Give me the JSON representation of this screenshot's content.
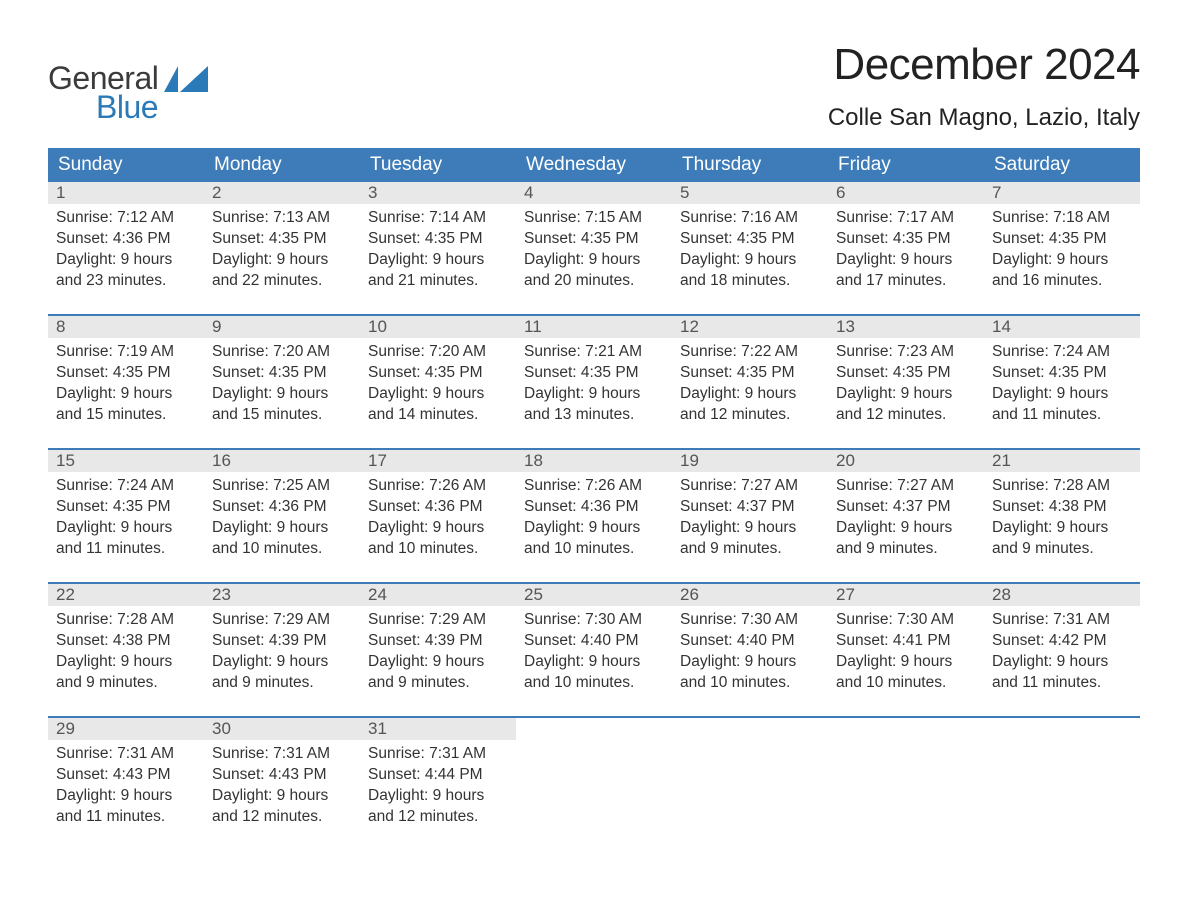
{
  "colors": {
    "header_bg": "#3d7cb8",
    "header_text": "#ffffff",
    "daynum_bg": "#e8e8e8",
    "daynum_text": "#555555",
    "body_text": "#333333",
    "week_border": "#3d7cb8",
    "page_bg": "#ffffff",
    "logo_general": "#3b3b3b",
    "logo_blue": "#2a7ab8",
    "title_text": "#222222"
  },
  "typography": {
    "title_fontsize": 44,
    "location_fontsize": 24,
    "dow_fontsize": 19,
    "daynum_fontsize": 17,
    "body_fontsize": 15.5,
    "logo_fontsize": 32,
    "font_family": "Arial"
  },
  "logo": {
    "top": "General",
    "bottom": "Blue"
  },
  "title": "December 2024",
  "location": "Colle San Magno, Lazio, Italy",
  "dow": [
    "Sunday",
    "Monday",
    "Tuesday",
    "Wednesday",
    "Thursday",
    "Friday",
    "Saturday"
  ],
  "weeks": [
    [
      {
        "n": "1",
        "sunrise": "Sunrise: 7:12 AM",
        "sunset": "Sunset: 4:36 PM",
        "d1": "Daylight: 9 hours",
        "d2": "and 23 minutes."
      },
      {
        "n": "2",
        "sunrise": "Sunrise: 7:13 AM",
        "sunset": "Sunset: 4:35 PM",
        "d1": "Daylight: 9 hours",
        "d2": "and 22 minutes."
      },
      {
        "n": "3",
        "sunrise": "Sunrise: 7:14 AM",
        "sunset": "Sunset: 4:35 PM",
        "d1": "Daylight: 9 hours",
        "d2": "and 21 minutes."
      },
      {
        "n": "4",
        "sunrise": "Sunrise: 7:15 AM",
        "sunset": "Sunset: 4:35 PM",
        "d1": "Daylight: 9 hours",
        "d2": "and 20 minutes."
      },
      {
        "n": "5",
        "sunrise": "Sunrise: 7:16 AM",
        "sunset": "Sunset: 4:35 PM",
        "d1": "Daylight: 9 hours",
        "d2": "and 18 minutes."
      },
      {
        "n": "6",
        "sunrise": "Sunrise: 7:17 AM",
        "sunset": "Sunset: 4:35 PM",
        "d1": "Daylight: 9 hours",
        "d2": "and 17 minutes."
      },
      {
        "n": "7",
        "sunrise": "Sunrise: 7:18 AM",
        "sunset": "Sunset: 4:35 PM",
        "d1": "Daylight: 9 hours",
        "d2": "and 16 minutes."
      }
    ],
    [
      {
        "n": "8",
        "sunrise": "Sunrise: 7:19 AM",
        "sunset": "Sunset: 4:35 PM",
        "d1": "Daylight: 9 hours",
        "d2": "and 15 minutes."
      },
      {
        "n": "9",
        "sunrise": "Sunrise: 7:20 AM",
        "sunset": "Sunset: 4:35 PM",
        "d1": "Daylight: 9 hours",
        "d2": "and 15 minutes."
      },
      {
        "n": "10",
        "sunrise": "Sunrise: 7:20 AM",
        "sunset": "Sunset: 4:35 PM",
        "d1": "Daylight: 9 hours",
        "d2": "and 14 minutes."
      },
      {
        "n": "11",
        "sunrise": "Sunrise: 7:21 AM",
        "sunset": "Sunset: 4:35 PM",
        "d1": "Daylight: 9 hours",
        "d2": "and 13 minutes."
      },
      {
        "n": "12",
        "sunrise": "Sunrise: 7:22 AM",
        "sunset": "Sunset: 4:35 PM",
        "d1": "Daylight: 9 hours",
        "d2": "and 12 minutes."
      },
      {
        "n": "13",
        "sunrise": "Sunrise: 7:23 AM",
        "sunset": "Sunset: 4:35 PM",
        "d1": "Daylight: 9 hours",
        "d2": "and 12 minutes."
      },
      {
        "n": "14",
        "sunrise": "Sunrise: 7:24 AM",
        "sunset": "Sunset: 4:35 PM",
        "d1": "Daylight: 9 hours",
        "d2": "and 11 minutes."
      }
    ],
    [
      {
        "n": "15",
        "sunrise": "Sunrise: 7:24 AM",
        "sunset": "Sunset: 4:35 PM",
        "d1": "Daylight: 9 hours",
        "d2": "and 11 minutes."
      },
      {
        "n": "16",
        "sunrise": "Sunrise: 7:25 AM",
        "sunset": "Sunset: 4:36 PM",
        "d1": "Daylight: 9 hours",
        "d2": "and 10 minutes."
      },
      {
        "n": "17",
        "sunrise": "Sunrise: 7:26 AM",
        "sunset": "Sunset: 4:36 PM",
        "d1": "Daylight: 9 hours",
        "d2": "and 10 minutes."
      },
      {
        "n": "18",
        "sunrise": "Sunrise: 7:26 AM",
        "sunset": "Sunset: 4:36 PM",
        "d1": "Daylight: 9 hours",
        "d2": "and 10 minutes."
      },
      {
        "n": "19",
        "sunrise": "Sunrise: 7:27 AM",
        "sunset": "Sunset: 4:37 PM",
        "d1": "Daylight: 9 hours",
        "d2": "and 9 minutes."
      },
      {
        "n": "20",
        "sunrise": "Sunrise: 7:27 AM",
        "sunset": "Sunset: 4:37 PM",
        "d1": "Daylight: 9 hours",
        "d2": "and 9 minutes."
      },
      {
        "n": "21",
        "sunrise": "Sunrise: 7:28 AM",
        "sunset": "Sunset: 4:38 PM",
        "d1": "Daylight: 9 hours",
        "d2": "and 9 minutes."
      }
    ],
    [
      {
        "n": "22",
        "sunrise": "Sunrise: 7:28 AM",
        "sunset": "Sunset: 4:38 PM",
        "d1": "Daylight: 9 hours",
        "d2": "and 9 minutes."
      },
      {
        "n": "23",
        "sunrise": "Sunrise: 7:29 AM",
        "sunset": "Sunset: 4:39 PM",
        "d1": "Daylight: 9 hours",
        "d2": "and 9 minutes."
      },
      {
        "n": "24",
        "sunrise": "Sunrise: 7:29 AM",
        "sunset": "Sunset: 4:39 PM",
        "d1": "Daylight: 9 hours",
        "d2": "and 9 minutes."
      },
      {
        "n": "25",
        "sunrise": "Sunrise: 7:30 AM",
        "sunset": "Sunset: 4:40 PM",
        "d1": "Daylight: 9 hours",
        "d2": "and 10 minutes."
      },
      {
        "n": "26",
        "sunrise": "Sunrise: 7:30 AM",
        "sunset": "Sunset: 4:40 PM",
        "d1": "Daylight: 9 hours",
        "d2": "and 10 minutes."
      },
      {
        "n": "27",
        "sunrise": "Sunrise: 7:30 AM",
        "sunset": "Sunset: 4:41 PM",
        "d1": "Daylight: 9 hours",
        "d2": "and 10 minutes."
      },
      {
        "n": "28",
        "sunrise": "Sunrise: 7:31 AM",
        "sunset": "Sunset: 4:42 PM",
        "d1": "Daylight: 9 hours",
        "d2": "and 11 minutes."
      }
    ],
    [
      {
        "n": "29",
        "sunrise": "Sunrise: 7:31 AM",
        "sunset": "Sunset: 4:43 PM",
        "d1": "Daylight: 9 hours",
        "d2": "and 11 minutes."
      },
      {
        "n": "30",
        "sunrise": "Sunrise: 7:31 AM",
        "sunset": "Sunset: 4:43 PM",
        "d1": "Daylight: 9 hours",
        "d2": "and 12 minutes."
      },
      {
        "n": "31",
        "sunrise": "Sunrise: 7:31 AM",
        "sunset": "Sunset: 4:44 PM",
        "d1": "Daylight: 9 hours",
        "d2": "and 12 minutes."
      },
      null,
      null,
      null,
      null
    ]
  ]
}
